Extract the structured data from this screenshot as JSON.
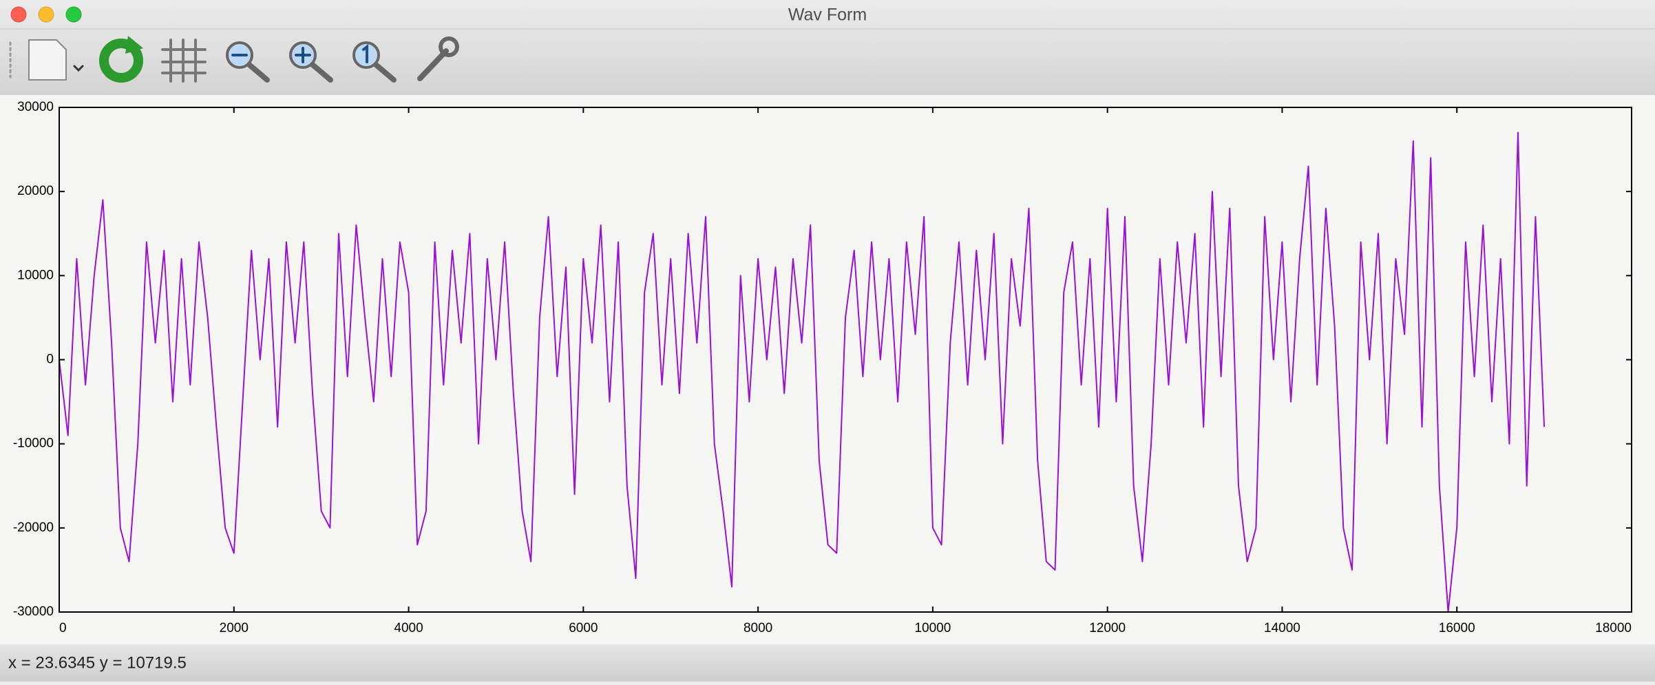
{
  "window": {
    "title": "Wav Form"
  },
  "status": "x = 23.6345 y = 10719.5",
  "chart_data": {
    "type": "line",
    "color": "#9b10d6",
    "x": [
      0,
      100,
      200,
      300,
      400,
      500,
      600,
      700,
      800,
      900,
      1000,
      1100,
      1200,
      1300,
      1400,
      1500,
      1600,
      1700,
      1800,
      1900,
      2000,
      2100,
      2200,
      2300,
      2400,
      2500,
      2600,
      2700,
      2800,
      2900,
      3000,
      3100,
      3200,
      3300,
      3400,
      3500,
      3600,
      3700,
      3800,
      3900,
      4000,
      4100,
      4200,
      4300,
      4400,
      4500,
      4600,
      4700,
      4800,
      4900,
      5000,
      5100,
      5200,
      5300,
      5400,
      5500,
      5600,
      5700,
      5800,
      5900,
      6000,
      6100,
      6200,
      6300,
      6400,
      6500,
      6600,
      6700,
      6800,
      6900,
      7000,
      7100,
      7200,
      7300,
      7400,
      7500,
      7600,
      7700,
      7800,
      7900,
      8000,
      8100,
      8200,
      8300,
      8400,
      8500,
      8600,
      8700,
      8800,
      8900,
      9000,
      9100,
      9200,
      9300,
      9400,
      9500,
      9600,
      9700,
      9800,
      9900,
      10000,
      10100,
      10200,
      10300,
      10400,
      10500,
      10600,
      10700,
      10800,
      10900,
      11000,
      11100,
      11200,
      11300,
      11400,
      11500,
      11600,
      11700,
      11800,
      11900,
      12000,
      12100,
      12200,
      12300,
      12400,
      12500,
      12600,
      12700,
      12800,
      12900,
      13000,
      13100,
      13200,
      13300,
      13400,
      13500,
      13600,
      13700,
      13800,
      13900,
      14000,
      14100,
      14200,
      14300,
      14400,
      14500,
      14600,
      14700,
      14800,
      14900,
      15000,
      15100,
      15200,
      15300,
      15400,
      15500,
      15600,
      15700,
      15800,
      15900,
      16000,
      16100,
      16200,
      16300,
      16400,
      16500,
      16600,
      16700,
      16800,
      16900,
      17000
    ],
    "values": [
      0,
      -9000,
      12000,
      -3000,
      10000,
      19000,
      2000,
      -20000,
      -24000,
      -10000,
      14000,
      2000,
      13000,
      -5000,
      12000,
      -3000,
      14000,
      5000,
      -8000,
      -20000,
      -23000,
      -5000,
      13000,
      0,
      12000,
      -8000,
      14000,
      2000,
      14000,
      -4000,
      -18000,
      -20000,
      15000,
      -2000,
      16000,
      5000,
      -5000,
      12000,
      -2000,
      14000,
      8000,
      -22000,
      -18000,
      14000,
      -3000,
      13000,
      2000,
      15000,
      -10000,
      12000,
      0,
      14000,
      -4000,
      -18000,
      -24000,
      5000,
      17000,
      -2000,
      11000,
      -16000,
      12000,
      2000,
      16000,
      -5000,
      14000,
      -15000,
      -26000,
      8000,
      15000,
      -3000,
      12000,
      -4000,
      15000,
      2000,
      17000,
      -10000,
      -18000,
      -27000,
      10000,
      -5000,
      12000,
      0,
      11000,
      -4000,
      12000,
      2000,
      16000,
      -12000,
      -22000,
      -23000,
      5000,
      13000,
      -2000,
      14000,
      0,
      12000,
      -5000,
      14000,
      3000,
      17000,
      -20000,
      -22000,
      2000,
      14000,
      -3000,
      13000,
      0,
      15000,
      -10000,
      12000,
      4000,
      18000,
      -12000,
      -24000,
      -25000,
      8000,
      14000,
      -3000,
      12000,
      -8000,
      18000,
      -5000,
      17000,
      -15000,
      -24000,
      -10000,
      12000,
      -3000,
      14000,
      2000,
      15000,
      -8000,
      20000,
      -2000,
      18000,
      -15000,
      -24000,
      -20000,
      17000,
      0,
      14000,
      -5000,
      12000,
      23000,
      -3000,
      18000,
      4000,
      -20000,
      -25000,
      14000,
      0,
      15000,
      -10000,
      12000,
      3000,
      26000,
      -8000,
      24000,
      -15000,
      -30000,
      -20000,
      14000,
      -2000,
      16000,
      -5000,
      12000,
      -10000,
      27000,
      -15000,
      17000,
      -8000
    ],
    "xlim": [
      0,
      18000
    ],
    "ylim": [
      -30000,
      30000
    ],
    "xticks": [
      0,
      2000,
      4000,
      6000,
      8000,
      10000,
      12000,
      14000,
      16000,
      18000
    ],
    "yticks": [
      -30000,
      -20000,
      -10000,
      0,
      10000,
      20000,
      30000
    ]
  }
}
